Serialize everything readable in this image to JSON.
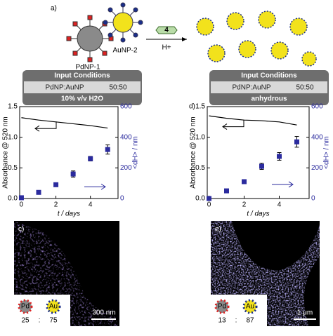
{
  "scheme": {
    "panel_label": "a)",
    "pd_label": "PdNP-1",
    "au_label": "AuNP-2",
    "linker": "4",
    "catalyst": "H+"
  },
  "conditions": [
    {
      "title": "Input Conditions",
      "ratio_label": "PdNP:AuNP",
      "ratio": "50:50",
      "solvent": "10% v/v H2O"
    },
    {
      "title": "Input Conditions",
      "ratio_label": "PdNP:AuNP",
      "ratio": "50:50",
      "solvent": "anhydrous"
    }
  ],
  "chart_data": [
    {
      "type": "line",
      "y_label": "Absorbance @ 520 nm",
      "y2_label": "<dH> / nm",
      "x_label": "t / days",
      "xlim": [
        -0.1,
        5.6
      ],
      "xticks": [
        0,
        2,
        4
      ],
      "ylim": [
        0,
        1.5
      ],
      "yticks": [
        {
          "value": 0,
          "label": "0.0"
        },
        {
          "value": 0.5,
          "label": "0.5"
        },
        {
          "value": 1,
          "label": "1.0"
        },
        {
          "value": 1.5,
          "label": "1.5"
        }
      ],
      "y2lim": [
        0,
        600
      ],
      "y2ticks": [
        0,
        200,
        400,
        600
      ],
      "series": [
        {
          "x": [
            0,
            1,
            2,
            3,
            4,
            5
          ],
          "values": [
            1.32,
            1.28,
            1.25,
            1.22,
            1.19,
            1.15
          ],
          "color": "#000000",
          "marker": "none"
        },
        {
          "x": [
            0,
            1,
            2,
            3,
            4,
            5
          ],
          "values": [
            5,
            40,
            90,
            160,
            260,
            320
          ],
          "errors": [
            null,
            null,
            null,
            20,
            15,
            30
          ],
          "color": "#2b2b9e",
          "marker": "square",
          "axis": "y2"
        }
      ]
    },
    {
      "type": "line",
      "panel_label": "d)",
      "y_label": "Absorbance @ 520 nm",
      "y2_label": "<dH> / nm",
      "x_label": "t / days",
      "xlim": [
        -0.1,
        5.7
      ],
      "xticks": [
        0,
        2,
        4
      ],
      "ylim": [
        0,
        1.5
      ],
      "yticks": [
        {
          "value": 0,
          "label": "0.0"
        },
        {
          "value": 0.5,
          "label": "0.5"
        },
        {
          "value": 1,
          "label": "1.0"
        },
        {
          "value": 1.5,
          "label": "1.5"
        }
      ],
      "y2lim": [
        0,
        600
      ],
      "y2ticks": [
        0,
        200,
        400,
        600
      ],
      "series": [
        {
          "x": [
            0,
            1,
            2,
            3,
            4,
            5
          ],
          "values": [
            1.35,
            1.31,
            1.28,
            1.27,
            1.25,
            1.2
          ],
          "color": "#000000",
          "marker": "none"
        },
        {
          "x": [
            0,
            1,
            2,
            3,
            4,
            5
          ],
          "values": [
            0,
            50,
            110,
            210,
            275,
            370
          ],
          "errors": [
            null,
            null,
            null,
            20,
            25,
            35
          ],
          "color": "#2b2b9e",
          "marker": "square",
          "axis": "y2"
        }
      ]
    }
  ],
  "images": [
    {
      "panel_label": "c)",
      "scale": "300 nm",
      "pd": "Pd",
      "au": "Au",
      "pd_ratio": "25",
      "sep": ":",
      "au_ratio": "75"
    },
    {
      "panel_label": "e)",
      "scale": "1 μm",
      "pd": "Pd",
      "au": "Au",
      "pd_ratio": "13",
      "sep": ":",
      "au_ratio": "87"
    }
  ]
}
